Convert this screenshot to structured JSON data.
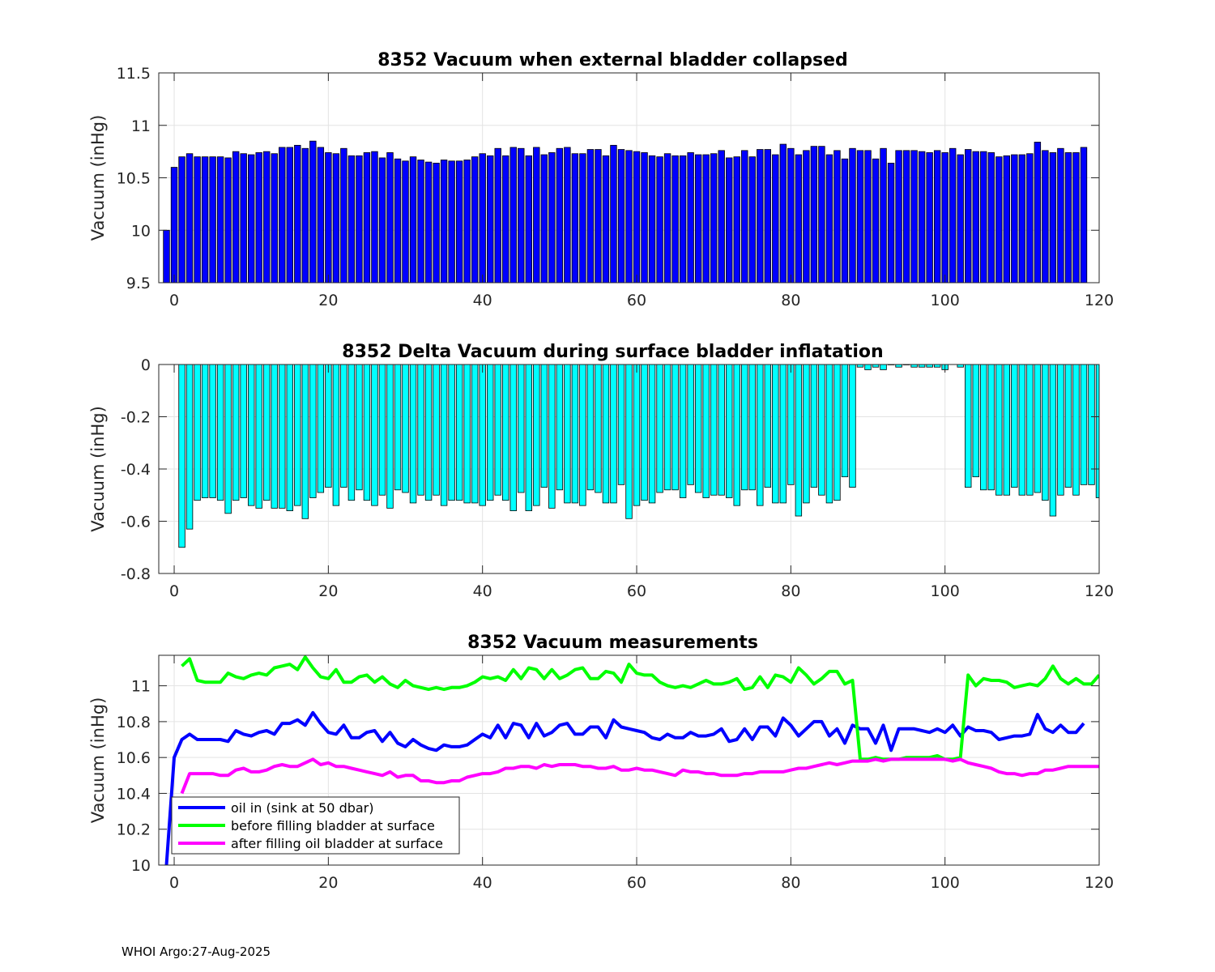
{
  "footer": "WHOI Argo:27-Aug-2025",
  "colors": {
    "bar1": "#0000ff",
    "bar2": "#00ffff",
    "oil_in": "#0000ff",
    "before": "#00ff00",
    "after": "#ff00ff",
    "grid": "#e3e3e3"
  },
  "chart_data": [
    {
      "type": "bar",
      "title": "8352 Vacuum when external bladder collapsed",
      "ylabel": "Vacuum (inHg)",
      "xlabel": "",
      "xlim": [
        -2,
        120
      ],
      "ylim": [
        9.5,
        11.5
      ],
      "xticks": [
        0,
        20,
        40,
        60,
        80,
        100,
        120
      ],
      "xtick_labels": [
        "0",
        "20",
        "40",
        "60",
        "80",
        "100",
        "120"
      ],
      "yticks": [
        9.5,
        10,
        10.5,
        11,
        11.5
      ],
      "ytick_labels": [
        "9.5",
        "10",
        "10.5",
        "11",
        "11.5"
      ],
      "grid": true,
      "x_start": -1,
      "values": [
        10.0,
        10.6,
        10.7,
        10.73,
        10.7,
        10.7,
        10.7,
        10.7,
        10.69,
        10.75,
        10.73,
        10.72,
        10.74,
        10.75,
        10.73,
        10.79,
        10.79,
        10.81,
        10.78,
        10.85,
        10.79,
        10.74,
        10.73,
        10.78,
        10.71,
        10.71,
        10.74,
        10.75,
        10.69,
        10.74,
        10.68,
        10.66,
        10.7,
        10.67,
        10.65,
        10.64,
        10.67,
        10.66,
        10.66,
        10.67,
        10.7,
        10.73,
        10.71,
        10.78,
        10.71,
        10.79,
        10.78,
        10.71,
        10.79,
        10.72,
        10.74,
        10.78,
        10.79,
        10.73,
        10.73,
        10.77,
        10.77,
        10.71,
        10.81,
        10.77,
        10.76,
        10.75,
        10.74,
        10.71,
        10.7,
        10.73,
        10.71,
        10.71,
        10.74,
        10.72,
        10.72,
        10.73,
        10.76,
        10.69,
        10.7,
        10.76,
        10.7,
        10.77,
        10.77,
        10.72,
        10.82,
        10.78,
        10.72,
        10.76,
        10.8,
        10.8,
        10.72,
        10.76,
        10.68,
        10.78,
        10.76,
        10.76,
        10.68,
        10.78,
        10.64,
        10.76,
        10.76,
        10.76,
        10.75,
        10.74,
        10.76,
        10.74,
        10.78,
        10.72,
        10.77,
        10.75,
        10.75,
        10.74,
        10.7,
        10.71,
        10.72,
        10.72,
        10.73,
        10.84,
        10.76,
        10.74,
        10.78,
        10.74,
        10.74,
        10.79
      ]
    },
    {
      "type": "bar",
      "title": "8352 Delta Vacuum during surface bladder inflatation",
      "ylabel": "Vacuum (inHg)",
      "xlabel": "",
      "xlim": [
        -2,
        120
      ],
      "ylim": [
        -0.8,
        0
      ],
      "xticks": [
        0,
        20,
        40,
        60,
        80,
        100,
        120
      ],
      "xtick_labels": [
        "0",
        "20",
        "40",
        "60",
        "80",
        "100",
        "120"
      ],
      "yticks": [
        -0.8,
        -0.6,
        -0.4,
        -0.2,
        0
      ],
      "ytick_labels": [
        "-0.8",
        "-0.6",
        "-0.4",
        "-0.2",
        "0"
      ],
      "grid": true,
      "x_start": 1,
      "values": [
        -0.7,
        -0.63,
        -0.52,
        -0.51,
        -0.51,
        -0.52,
        -0.57,
        -0.52,
        -0.51,
        -0.54,
        -0.55,
        -0.52,
        -0.55,
        -0.55,
        -0.56,
        -0.54,
        -0.59,
        -0.51,
        -0.49,
        -0.47,
        -0.54,
        -0.47,
        -0.52,
        -0.48,
        -0.52,
        -0.54,
        -0.5,
        -0.55,
        -0.48,
        -0.49,
        -0.53,
        -0.5,
        -0.52,
        -0.5,
        -0.54,
        -0.52,
        -0.52,
        -0.53,
        -0.53,
        -0.54,
        -0.52,
        -0.5,
        -0.52,
        -0.56,
        -0.49,
        -0.56,
        -0.54,
        -0.47,
        -0.55,
        -0.48,
        -0.53,
        -0.53,
        -0.54,
        -0.48,
        -0.49,
        -0.53,
        -0.53,
        -0.46,
        -0.59,
        -0.54,
        -0.52,
        -0.53,
        -0.49,
        -0.48,
        -0.48,
        -0.51,
        -0.46,
        -0.49,
        -0.51,
        -0.5,
        -0.5,
        -0.51,
        -0.54,
        -0.48,
        -0.48,
        -0.54,
        -0.47,
        -0.53,
        -0.53,
        -0.46,
        -0.58,
        -0.53,
        -0.47,
        -0.5,
        -0.53,
        -0.52,
        -0.43,
        -0.47,
        -0.01,
        -0.02,
        -0.01,
        -0.02,
        0,
        -0.01,
        0,
        -0.01,
        -0.01,
        -0.01,
        -0.01,
        -0.02,
        0.01,
        -0.01,
        -0.47,
        -0.43,
        -0.48,
        -0.48,
        -0.5,
        -0.5,
        -0.47,
        -0.5,
        -0.5,
        -0.49,
        -0.52,
        -0.58,
        -0.5,
        -0.47,
        -0.5,
        -0.46,
        -0.46,
        -0.51
      ]
    },
    {
      "type": "line",
      "title": "8352 Vacuum measurements",
      "ylabel": "Vacuum (inHg)",
      "xlabel": "",
      "xlim": [
        -2,
        120
      ],
      "ylim": [
        10,
        11.17
      ],
      "xticks": [
        0,
        20,
        40,
        60,
        80,
        100,
        120
      ],
      "xtick_labels": [
        "0",
        "20",
        "40",
        "60",
        "80",
        "100",
        "120"
      ],
      "yticks": [
        10,
        10.2,
        10.4,
        10.6,
        10.8,
        11
      ],
      "ytick_labels": [
        "10",
        "10.2",
        "10.4",
        "10.6",
        "10.8",
        "11"
      ],
      "grid": true,
      "legend_position": "bottom-left",
      "series": [
        {
          "name": "oil in (sink at 50 dbar)",
          "x_start": -1,
          "values": [
            10.0,
            10.6,
            10.7,
            10.73,
            10.7,
            10.7,
            10.7,
            10.7,
            10.69,
            10.75,
            10.73,
            10.72,
            10.74,
            10.75,
            10.73,
            10.79,
            10.79,
            10.81,
            10.78,
            10.85,
            10.79,
            10.74,
            10.73,
            10.78,
            10.71,
            10.71,
            10.74,
            10.75,
            10.69,
            10.74,
            10.68,
            10.66,
            10.7,
            10.67,
            10.65,
            10.64,
            10.67,
            10.66,
            10.66,
            10.67,
            10.7,
            10.73,
            10.71,
            10.78,
            10.71,
            10.79,
            10.78,
            10.71,
            10.79,
            10.72,
            10.74,
            10.78,
            10.79,
            10.73,
            10.73,
            10.77,
            10.77,
            10.71,
            10.81,
            10.77,
            10.76,
            10.75,
            10.74,
            10.71,
            10.7,
            10.73,
            10.71,
            10.71,
            10.74,
            10.72,
            10.72,
            10.73,
            10.76,
            10.69,
            10.7,
            10.76,
            10.7,
            10.77,
            10.77,
            10.72,
            10.82,
            10.78,
            10.72,
            10.76,
            10.8,
            10.8,
            10.72,
            10.76,
            10.68,
            10.78,
            10.76,
            10.76,
            10.68,
            10.78,
            10.64,
            10.76,
            10.76,
            10.76,
            10.75,
            10.74,
            10.76,
            10.74,
            10.78,
            10.72,
            10.77,
            10.75,
            10.75,
            10.74,
            10.7,
            10.71,
            10.72,
            10.72,
            10.73,
            10.84,
            10.76,
            10.74,
            10.78,
            10.74,
            10.74,
            10.79
          ]
        },
        {
          "name": "before filling bladder at surface",
          "x_start": 1,
          "values": [
            11.11,
            11.15,
            11.03,
            11.02,
            11.02,
            11.02,
            11.07,
            11.05,
            11.04,
            11.06,
            11.07,
            11.06,
            11.1,
            11.11,
            11.12,
            11.09,
            11.16,
            11.1,
            11.05,
            11.04,
            11.09,
            11.02,
            11.02,
            11.05,
            11.06,
            11.02,
            11.05,
            11.01,
            10.99,
            11.03,
            11.0,
            10.99,
            10.98,
            10.99,
            10.98,
            10.99,
            10.99,
            11.0,
            11.02,
            11.05,
            11.04,
            11.05,
            11.03,
            11.09,
            11.04,
            11.1,
            11.09,
            11.04,
            11.09,
            11.04,
            11.06,
            11.09,
            11.1,
            11.04,
            11.04,
            11.08,
            11.07,
            11.02,
            11.12,
            11.07,
            11.06,
            11.06,
            11.02,
            11.0,
            10.99,
            11.0,
            10.99,
            11.01,
            11.03,
            11.01,
            11.01,
            11.02,
            11.04,
            10.98,
            10.99,
            11.05,
            10.99,
            11.06,
            11.05,
            11.02,
            11.1,
            11.06,
            11.01,
            11.04,
            11.08,
            11.08,
            11.01,
            11.03,
            10.59,
            10.59,
            10.6,
            10.59,
            10.59,
            10.59,
            10.6,
            10.6,
            10.6,
            10.6,
            10.61,
            10.59,
            10.59,
            10.6,
            11.06,
            11.0,
            11.04,
            11.03,
            11.03,
            11.02,
            10.99,
            11.0,
            11.01,
            11.0,
            11.04,
            11.11,
            11.04,
            11.01,
            11.04,
            11.01,
            11.01,
            11.06
          ]
        },
        {
          "name": "after filling oil bladder at surface",
          "x_start": 1,
          "values": [
            10.4,
            10.51,
            10.51,
            10.51,
            10.51,
            10.5,
            10.5,
            10.53,
            10.54,
            10.52,
            10.52,
            10.53,
            10.55,
            10.56,
            10.55,
            10.55,
            10.57,
            10.59,
            10.56,
            10.57,
            10.55,
            10.55,
            10.54,
            10.53,
            10.52,
            10.51,
            10.5,
            10.52,
            10.49,
            10.5,
            10.5,
            10.47,
            10.47,
            10.46,
            10.46,
            10.47,
            10.47,
            10.49,
            10.5,
            10.51,
            10.51,
            10.52,
            10.54,
            10.54,
            10.55,
            10.55,
            10.54,
            10.56,
            10.55,
            10.56,
            10.56,
            10.56,
            10.55,
            10.55,
            10.54,
            10.54,
            10.55,
            10.53,
            10.53,
            10.54,
            10.53,
            10.53,
            10.52,
            10.51,
            10.5,
            10.53,
            10.52,
            10.52,
            10.51,
            10.51,
            10.5,
            10.5,
            10.5,
            10.51,
            10.51,
            10.52,
            10.52,
            10.52,
            10.52,
            10.53,
            10.54,
            10.54,
            10.55,
            10.56,
            10.57,
            10.56,
            10.57,
            10.58,
            10.58,
            10.58,
            10.59,
            10.58,
            10.59,
            10.59,
            10.59,
            10.59,
            10.59,
            10.59,
            10.59,
            10.59,
            10.58,
            10.59,
            10.57,
            10.56,
            10.55,
            10.54,
            10.52,
            10.51,
            10.51,
            10.5,
            10.51,
            10.51,
            10.53,
            10.53,
            10.54,
            10.55,
            10.55,
            10.55,
            10.55,
            10.55
          ]
        }
      ]
    }
  ]
}
